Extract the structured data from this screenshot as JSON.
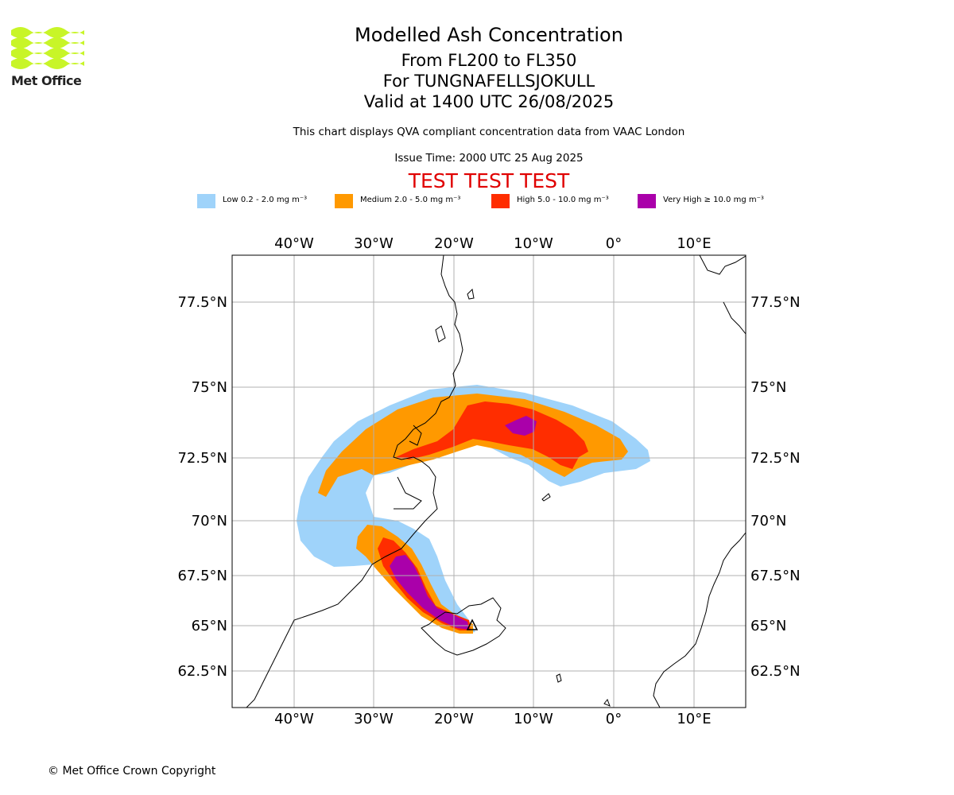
{
  "header": {
    "logo_text": "Met Office",
    "title": "Modelled Ash Concentration",
    "flight_levels": "From FL200 to FL350",
    "volcano": "For TUNGNAFELLSJOKULL",
    "valid_time": "Valid at 1400 UTC 26/08/2025",
    "description": "This chart displays QVA compliant concentration data from VAAC London",
    "issue_time": "Issue Time: 2000 UTC 25 Aug 2025",
    "test_banner": "TEST TEST TEST"
  },
  "legend": [
    {
      "label": "Low 0.2 - 2.0 mg m⁻³",
      "color": "#9fd3fa"
    },
    {
      "label": "Medium 2.0 - 5.0 mg m⁻³",
      "color": "#ff9900"
    },
    {
      "label": "High 5.0 - 10.0 mg m⁻³",
      "color": "#ff2d00"
    },
    {
      "label": "Very High ≥ 10.0 mg m⁻³",
      "color": "#aa00aa"
    }
  ],
  "map": {
    "lon_ticks": [
      "40°W",
      "30°W",
      "20°W",
      "10°W",
      "0°",
      "10°E"
    ],
    "lat_ticks": [
      "77.5°N",
      "75°N",
      "72.5°N",
      "70°N",
      "67.5°N",
      "65°N",
      "62.5°N"
    ],
    "grid": true,
    "volcano_marker": "triangle-icon"
  },
  "footer": {
    "copyright": "© Met Office Crown Copyright"
  }
}
